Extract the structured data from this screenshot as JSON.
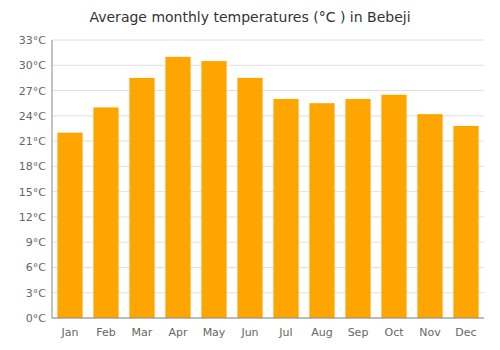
{
  "chart_data": {
    "type": "bar",
    "title": "Average monthly temperatures (°C ) in Bebeji",
    "categories": [
      "Jan",
      "Feb",
      "Mar",
      "Apr",
      "May",
      "Jun",
      "Jul",
      "Aug",
      "Sep",
      "Oct",
      "Nov",
      "Dec"
    ],
    "values": [
      22.0,
      25.0,
      28.5,
      31.0,
      30.5,
      28.5,
      26.0,
      25.5,
      26.0,
      26.5,
      24.2,
      22.8
    ],
    "color": "#FFA500",
    "ylim": [
      0,
      33
    ],
    "yticks": [
      {
        "value": 0,
        "label": "0°C"
      },
      {
        "value": 3,
        "label": "3°C"
      },
      {
        "value": 6,
        "label": "6°C"
      },
      {
        "value": 9,
        "label": "9°C"
      },
      {
        "value": 12,
        "label": "12°C"
      },
      {
        "value": 15,
        "label": "15°C"
      },
      {
        "value": 18,
        "label": "18°C"
      },
      {
        "value": 21,
        "label": "21°C"
      },
      {
        "value": 24,
        "label": "24°C"
      },
      {
        "value": 27,
        "label": "27°C"
      },
      {
        "value": 30,
        "label": "30°C"
      },
      {
        "value": 33,
        "label": "33°C"
      }
    ],
    "grid": true
  }
}
